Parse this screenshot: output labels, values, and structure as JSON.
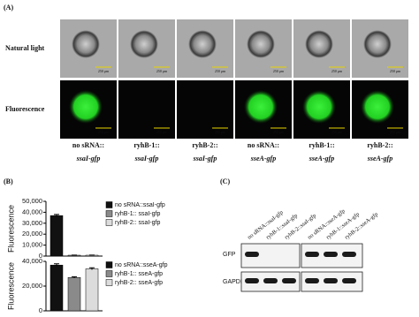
{
  "panel_a": {
    "label": "(A)",
    "row_labels": [
      "Natural light",
      "Fluorescence"
    ],
    "column_labels": [
      [
        "no sRNA::",
        "ssaI-gfp"
      ],
      [
        "ryhB-1::",
        "ssaI-gfp"
      ],
      [
        "ryhB-2::",
        "ssaI-gfp"
      ],
      [
        "no sRNA::",
        "sseA-gfp"
      ],
      [
        "ryhB-1::",
        "sseA-gfp"
      ],
      [
        "ryhB-2::",
        "sseA-gfp"
      ]
    ],
    "scale_bar": "250 μm"
  },
  "panel_b": {
    "label": "(B)"
  },
  "chart_data": [
    {
      "type": "bar",
      "y_label": "Fluorescence",
      "ylim": [
        0,
        50000
      ],
      "yticks": [
        0,
        {
          "value": 10000,
          "label": "10,000"
        },
        {
          "value": 20000,
          "label": "20,000"
        },
        {
          "value": 30000,
          "label": "30,000"
        },
        {
          "value": 40000,
          "label": "40,000"
        },
        {
          "value": 50000,
          "label": "50,000"
        }
      ],
      "series": [
        {
          "name": "no sRNA::ssaI-gfp",
          "color": "#111111",
          "values": [
            37000
          ],
          "errors": [
            1000
          ]
        },
        {
          "name": "ryhB-1:: ssaI-gfp",
          "color": "#8a8a8a",
          "values": [
            800
          ],
          "errors": [
            150
          ]
        },
        {
          "name": "ryhB-2:: ssaI-gfp",
          "color": "#dcdcdc",
          "values": [
            800
          ],
          "errors": [
            150
          ]
        }
      ]
    },
    {
      "type": "bar",
      "y_label": "Fluorescence",
      "ylim": [
        0,
        40000
      ],
      "yticks": [
        0,
        {
          "value": 20000,
          "label": "20,000"
        },
        {
          "value": 40000,
          "label": "40,000"
        }
      ],
      "series": [
        {
          "name": "no sRNA::sseA-gfp",
          "color": "#111111",
          "values": [
            37000
          ],
          "errors": [
            1000
          ]
        },
        {
          "name": "ryhB-1:: sseA-gfp",
          "color": "#8a8a8a",
          "values": [
            27000
          ],
          "errors": [
            600
          ]
        },
        {
          "name": "ryhB-2:: sseA-gfp",
          "color": "#dcdcdc",
          "values": [
            34000
          ],
          "errors": [
            800
          ]
        }
      ]
    }
  ],
  "panel_c": {
    "label": "(C)",
    "lane_labels": [
      "no sRNA::ssaI-gfp",
      "ryhB-1::ssaI-gfp",
      "ryhB-2::ssaI-gfp",
      "no sRNA::sseA-gfp",
      "ryhB-1::sseA-gfp",
      "ryhB-2::sseA-gfp"
    ],
    "row_labels": [
      "GFP",
      "GAPDH"
    ]
  }
}
